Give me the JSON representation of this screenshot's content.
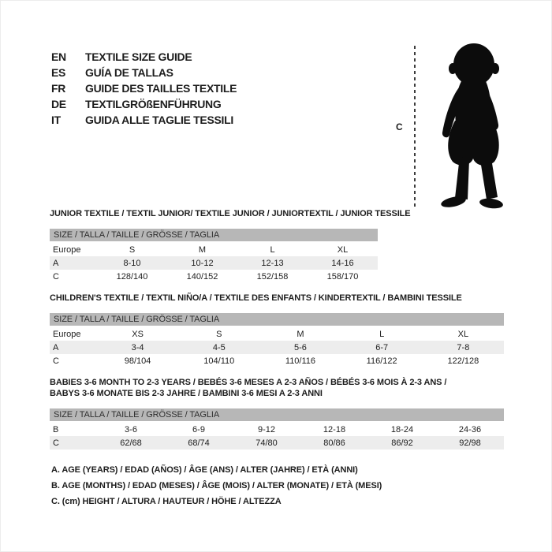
{
  "colors": {
    "text": "#1d1d1d",
    "table_header_bg": "#b7b7b7",
    "row_shade_bg": "#ededed",
    "silhouette": "#0c0c0c",
    "measure_line": "#3c3c3c",
    "page_border": "#ececec"
  },
  "language_guide": {
    "items": [
      {
        "code": "EN",
        "label": "TEXTILE SIZE GUIDE"
      },
      {
        "code": "ES",
        "label": "GUÍA DE TALLAS"
      },
      {
        "code": "FR",
        "label": "GUIDE DES TAILLES TEXTILE"
      },
      {
        "code": "DE",
        "label": "TEXTILGRÖßENFÜHRUNG"
      },
      {
        "code": "IT",
        "label": "GUIDA ALLE TAGLIE TESSILI"
      }
    ]
  },
  "figure": {
    "measure_label": "C",
    "silhouette": "toddler-silhouette-icon"
  },
  "sections": [
    {
      "title_lines": [
        "JUNIOR TEXTILE / TEXTIL JUNIOR/ TEXTILE JUNIOR / JUNIORTEXTIL / JUNIOR TESSILE"
      ],
      "table": {
        "header": "SIZE / TALLA / TAILLE / GRÖSSE / TAGLIA",
        "rows": [
          {
            "label": "Europe",
            "shaded": false,
            "values": [
              "S",
              "M",
              "L",
              "XL"
            ]
          },
          {
            "label": "A",
            "shaded": true,
            "values": [
              "8-10",
              "10-12",
              "12-13",
              "14-16"
            ]
          },
          {
            "label": "C",
            "shaded": false,
            "values": [
              "128/140",
              "140/152",
              "152/158",
              "158/170"
            ]
          }
        ]
      }
    },
    {
      "title_lines": [
        "CHILDREN'S TEXTILE / TEXTIL NIÑO/A / TEXTILE DES ENFANTS / KINDERTEXTIL / BAMBINI TESSILE"
      ],
      "table": {
        "header": "SIZE / TALLA / TAILLE / GRÖSSE / TAGLIA",
        "rows": [
          {
            "label": "Europe",
            "shaded": false,
            "values": [
              "XS",
              "S",
              "M",
              "L",
              "XL"
            ]
          },
          {
            "label": "A",
            "shaded": true,
            "values": [
              "3-4",
              "4-5",
              "5-6",
              "6-7",
              "7-8"
            ]
          },
          {
            "label": "C",
            "shaded": false,
            "values": [
              "98/104",
              "104/110",
              "110/116",
              "116/122",
              "122/128"
            ]
          }
        ]
      }
    },
    {
      "title_lines": [
        "BABIES 3-6 MONTH TO 2-3 YEARS / BEBÉS 3-6 MESES A 2-3 AÑOS / BÉBÉS 3-6 MOIS À 2-3 ANS /",
        "BABYS 3-6 MONATE BIS 2-3 JAHRE / BAMBINI 3-6 MESI A 2-3 ANNI"
      ],
      "table": {
        "header": "SIZE / TALLA / TAILLE / GRÖSSE / TAGLIA",
        "rows": [
          {
            "label": "B",
            "shaded": false,
            "values": [
              "3-6",
              "6-9",
              "9-12",
              "12-18",
              "18-24",
              "24-36"
            ]
          },
          {
            "label": "C",
            "shaded": true,
            "values": [
              "62/68",
              "68/74",
              "74/80",
              "80/86",
              "86/92",
              "92/98"
            ]
          }
        ]
      }
    }
  ],
  "legend": {
    "lines": [
      "A. AGE (YEARS) / EDAD (AÑOS) / ÂGE (ANS) / ALTER (JAHRE) / ETÀ (ANNI)",
      "B. AGE (MONTHS) / EDAD (MESES) / ÂGE (MOIS) / ALTER (MONATE) / ETÀ (MESI)",
      "C. (cm) HEIGHT / ALTURA / HAUTEUR / HÖHE / ALTEZZA"
    ]
  }
}
